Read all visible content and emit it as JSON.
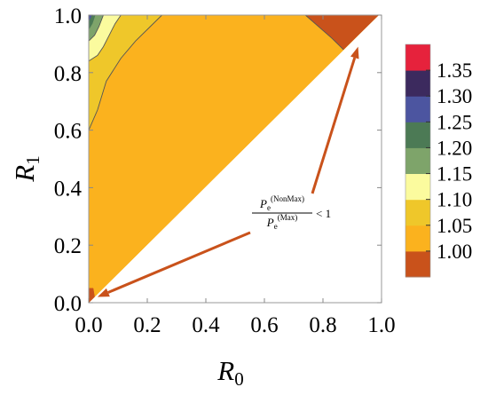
{
  "chart_data": {
    "type": "contour",
    "xlabel": "R",
    "xlabel_sub": "0",
    "ylabel": "R",
    "ylabel_sub": "1",
    "xlim": [
      0.0,
      1.0
    ],
    "ylim": [
      0.0,
      1.0
    ],
    "x_ticks": [
      "0.0",
      "0.2",
      "0.4",
      "0.6",
      "0.8",
      "1.0"
    ],
    "y_ticks": [
      "0.0",
      "0.2",
      "0.4",
      "0.6",
      "0.8",
      "1.0"
    ],
    "legend_position": "right",
    "colorbar": {
      "labels": [
        "1.00",
        "1.05",
        "1.10",
        "1.15",
        "1.20",
        "1.25",
        "1.30",
        "1.35"
      ],
      "colors": [
        "#c9521b",
        "#fbb21e",
        "#efc72a",
        "#fbfb9e",
        "#7ea46a",
        "#4c7a55",
        "#4c55a0",
        "#3c2a5e",
        "#e6223c"
      ]
    },
    "regions": [
      {
        "level": "1.00-1.05",
        "color": "#fbb21e",
        "polygon": [
          [
            0.0,
            0.0
          ],
          [
            0.99,
            1.0
          ],
          [
            0.0,
            1.0
          ]
        ]
      },
      {
        "level": "1.05-1.10",
        "color": "#efc72a",
        "polygon": [
          [
            0.0,
            0.6
          ],
          [
            0.03,
            0.67
          ],
          [
            0.06,
            0.77
          ],
          [
            0.11,
            0.85
          ],
          [
            0.16,
            0.91
          ],
          [
            0.21,
            0.96
          ],
          [
            0.25,
            1.0
          ],
          [
            0.0,
            1.0
          ]
        ]
      },
      {
        "level": "1.10-1.15",
        "color": "#fbfb9e",
        "polygon": [
          [
            0.0,
            0.84
          ],
          [
            0.03,
            0.86
          ],
          [
            0.05,
            0.89
          ],
          [
            0.07,
            0.93
          ],
          [
            0.09,
            0.97
          ],
          [
            0.11,
            1.0
          ],
          [
            0.0,
            1.0
          ]
        ]
      },
      {
        "level": "1.15-1.20",
        "color": "#7ea46a",
        "polygon": [
          [
            0.0,
            0.91
          ],
          [
            0.02,
            0.93
          ],
          [
            0.035,
            0.96
          ],
          [
            0.05,
            1.0
          ],
          [
            0.0,
            1.0
          ]
        ]
      },
      {
        "level": "1.20-1.25",
        "color": "#4c7a55",
        "polygon": [
          [
            0.0,
            0.95
          ],
          [
            0.012,
            0.97
          ],
          [
            0.022,
            1.0
          ],
          [
            0.0,
            1.0
          ]
        ]
      },
      {
        "level": "1.25-1.30",
        "color": "#4c55a0",
        "polygon": [
          [
            0.0,
            0.98
          ],
          [
            0.006,
            0.99
          ],
          [
            0.01,
            1.0
          ],
          [
            0.0,
            1.0
          ]
        ]
      },
      {
        "level": "<1.00",
        "color": "#c9521b",
        "polygon": [
          [
            0.74,
            1.0
          ],
          [
            0.99,
            1.0
          ],
          [
            0.87,
            0.88
          ],
          [
            0.83,
            0.92
          ]
        ]
      },
      {
        "level": "<1.00",
        "color": "#c9521b",
        "polygon": [
          [
            0.0,
            0.0
          ],
          [
            0.02,
            0.02
          ],
          [
            0.015,
            0.05
          ],
          [
            0.0,
            0.05
          ]
        ]
      }
    ],
    "contour_lines": [
      [
        [
          0.0,
          0.6
        ],
        [
          0.03,
          0.67
        ],
        [
          0.06,
          0.77
        ],
        [
          0.11,
          0.85
        ],
        [
          0.16,
          0.91
        ],
        [
          0.21,
          0.96
        ],
        [
          0.25,
          1.0
        ]
      ],
      [
        [
          0.0,
          0.84
        ],
        [
          0.03,
          0.86
        ],
        [
          0.05,
          0.89
        ],
        [
          0.07,
          0.93
        ],
        [
          0.09,
          0.97
        ],
        [
          0.11,
          1.0
        ]
      ],
      [
        [
          0.0,
          0.91
        ],
        [
          0.02,
          0.93
        ],
        [
          0.035,
          0.96
        ],
        [
          0.05,
          1.0
        ]
      ],
      [
        [
          0.74,
          1.0
        ],
        [
          0.83,
          0.92
        ],
        [
          0.87,
          0.88
        ]
      ]
    ],
    "annotation": {
      "numerator_base": "P",
      "numerator_sub": "e",
      "numerator_sup": "(NonMax)",
      "denominator_base": "P",
      "denominator_sub": "e",
      "denominator_sup": "(Max)",
      "relation": "< 1",
      "arrow_color": "#c9521b",
      "arrow_targets": [
        [
          0.03,
          0.02
        ],
        [
          0.92,
          0.89
        ]
      ]
    }
  }
}
